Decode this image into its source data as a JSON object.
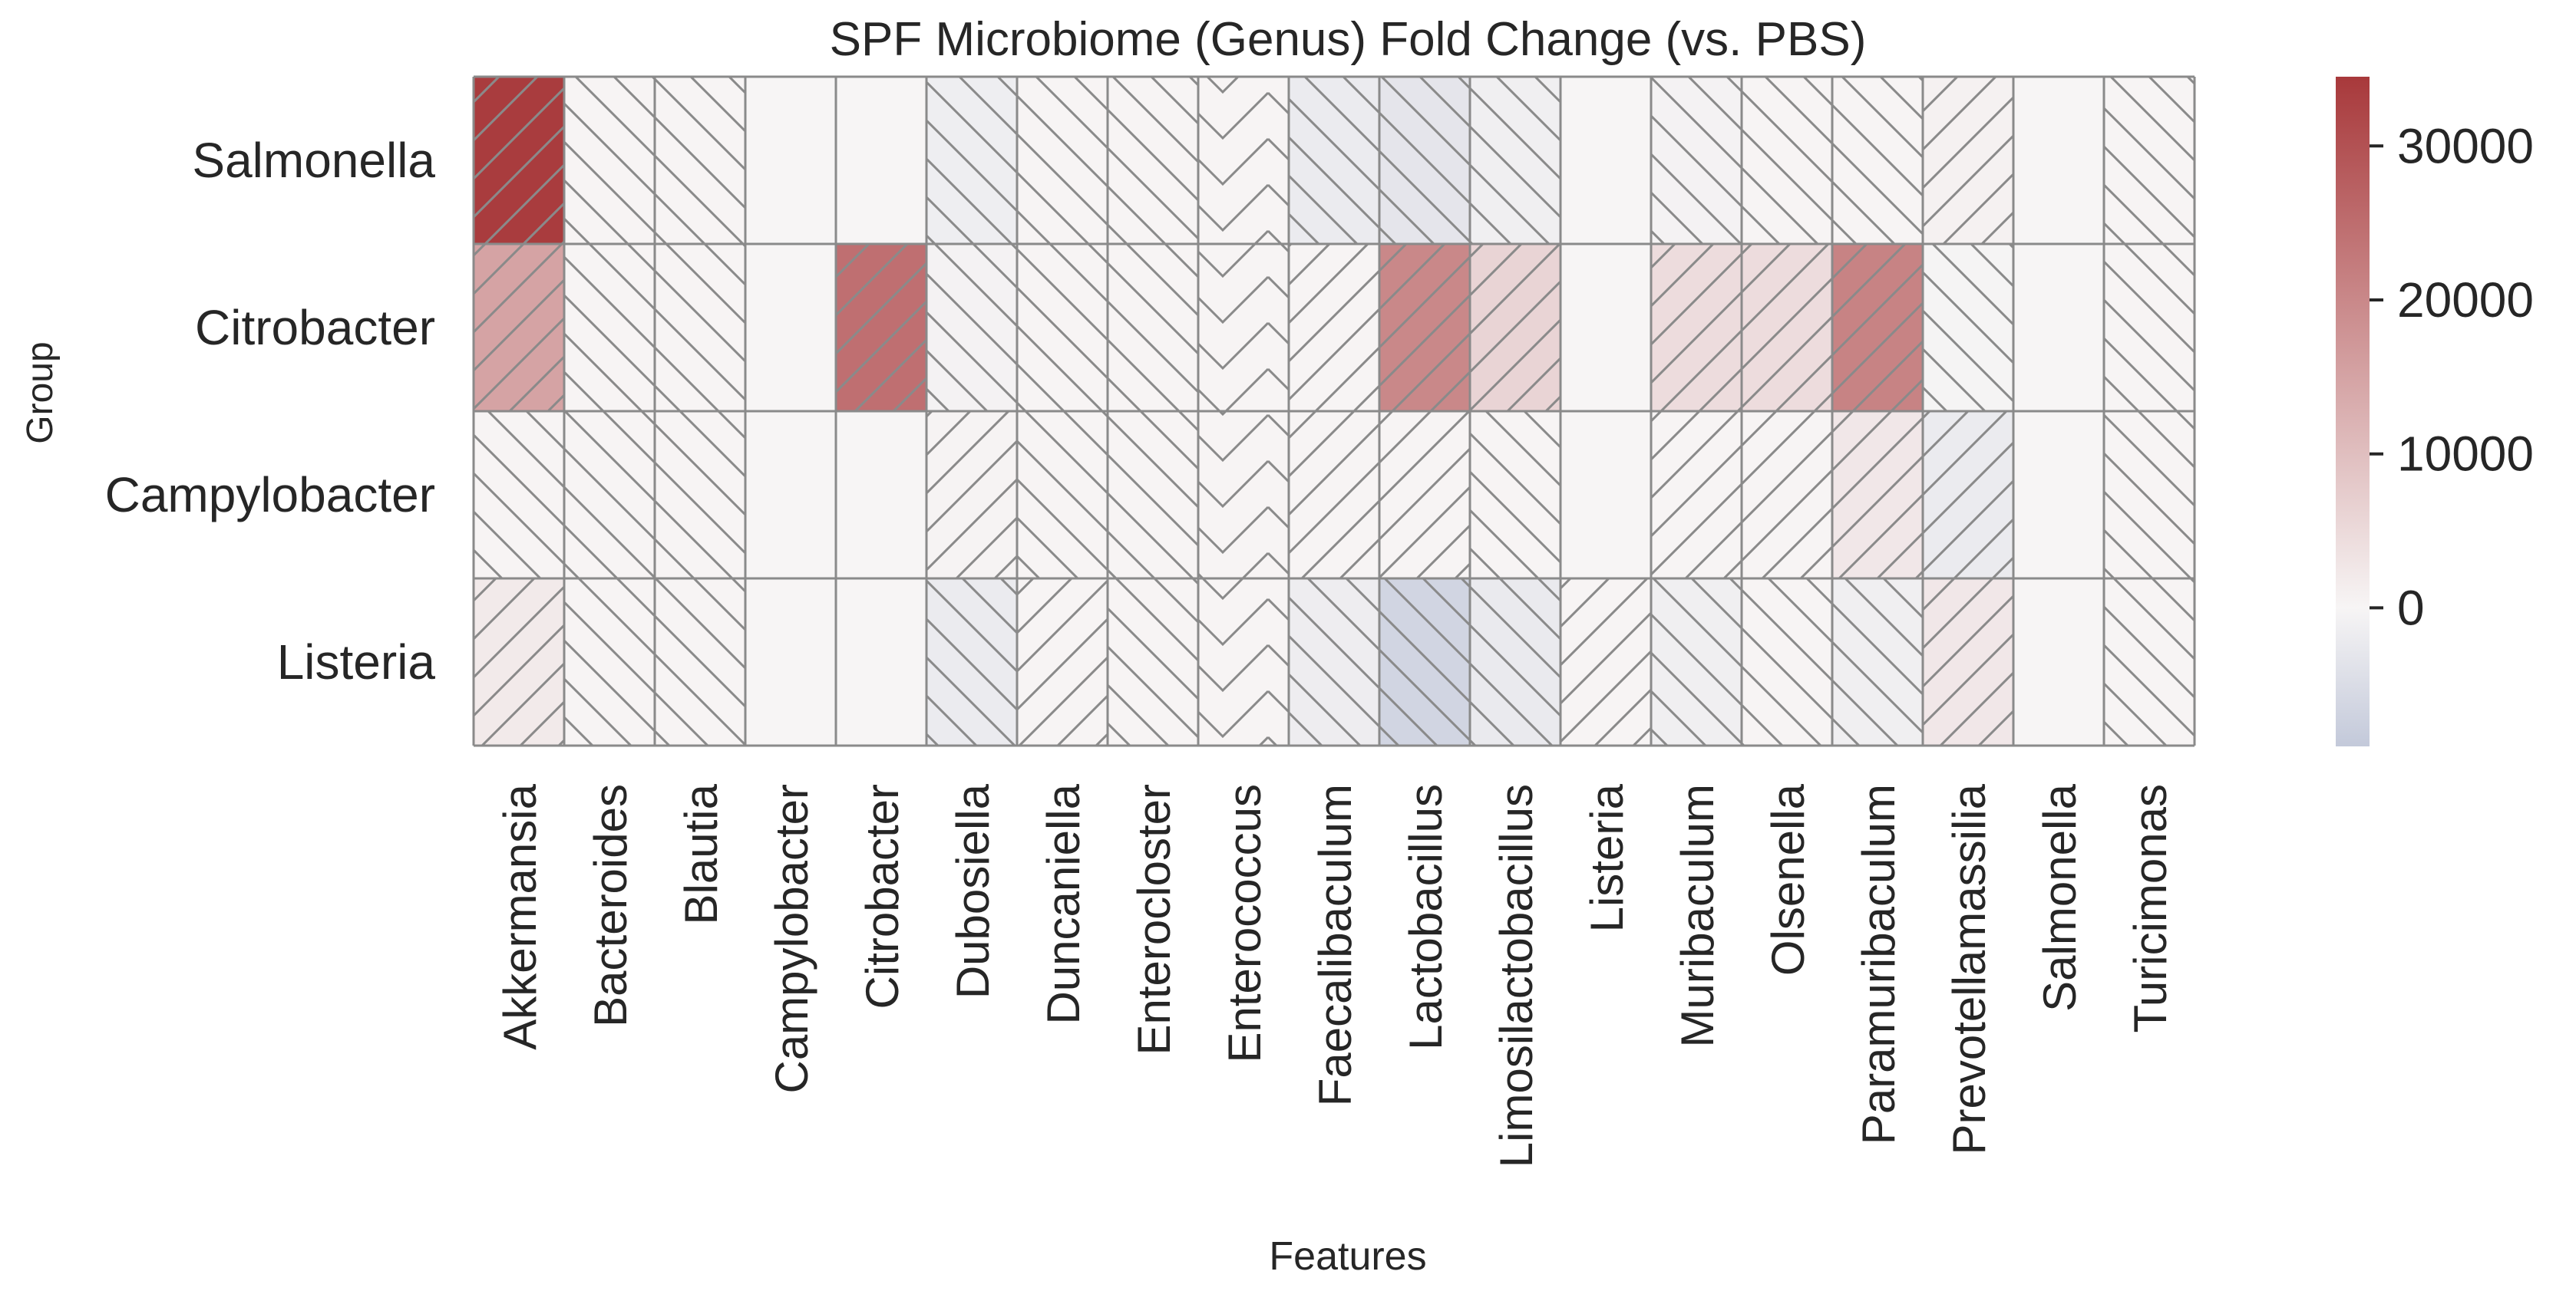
{
  "chart_data": {
    "type": "heatmap",
    "title": "SPF Microbiome (Genus) Fold Change (vs. PBS)",
    "xlabel": "Features",
    "ylabel": "Group",
    "rows": [
      "Salmonella",
      "Citrobacter",
      "Campylobacter",
      "Listeria"
    ],
    "columns": [
      "Akkermansia",
      "Bacteroides",
      "Blautia",
      "Campylobacter",
      "Citrobacter",
      "Dubosiella",
      "Duncaniella",
      "Enterocloster",
      "Enterococcus",
      "Faecalibaculum",
      "Lactobacillus",
      "Limosilactobacillus",
      "Listeria",
      "Muribaculum",
      "Olsenella",
      "Paramuribaculum",
      "Prevotellamassilia",
      "Salmonella",
      "Turicimonas"
    ],
    "values": [
      [
        34000,
        200,
        200,
        0,
        0,
        -1500,
        200,
        200,
        200,
        -2000,
        -3200,
        -1200,
        0,
        -600,
        200,
        200,
        800,
        0,
        200
      ],
      [
        15000,
        200,
        200,
        0,
        24500,
        -600,
        200,
        200,
        200,
        200,
        20000,
        6000,
        0,
        4500,
        4500,
        21000,
        -300,
        0,
        200
      ],
      [
        200,
        200,
        200,
        0,
        0,
        300,
        200,
        200,
        200,
        200,
        200,
        200,
        0,
        200,
        200,
        2500,
        -2000,
        0,
        200
      ],
      [
        2000,
        200,
        200,
        0,
        0,
        -2000,
        200,
        200,
        200,
        -1600,
        -6500,
        -2200,
        200,
        -1200,
        200,
        -1200,
        2500,
        0,
        200
      ]
    ],
    "hatch": [
      [
        "/",
        "\\",
        "\\",
        "",
        "",
        "\\",
        "\\",
        "\\",
        "v",
        "\\",
        "\\",
        "\\",
        "",
        "\\",
        "\\",
        "\\",
        "/",
        "",
        "\\"
      ],
      [
        "/",
        "\\",
        "\\",
        "",
        "/",
        "\\",
        "\\",
        "\\",
        "v",
        "/",
        "/",
        "/",
        "",
        "/",
        "/",
        "/",
        "\\",
        "",
        "\\"
      ],
      [
        "\\",
        "\\",
        "\\",
        "",
        "",
        "/",
        "\\",
        "\\",
        "v",
        "/",
        "/",
        "\\",
        "",
        "/",
        "/",
        "/",
        "/",
        "",
        "\\"
      ],
      [
        "/",
        "\\",
        "\\",
        "",
        "",
        "\\",
        "/",
        "\\",
        "v",
        "\\",
        "\\",
        "\\",
        "/",
        "\\",
        "\\",
        "\\",
        "/",
        "",
        "\\"
      ]
    ],
    "colorbar": {
      "vmin": -9000,
      "vmax": 34500,
      "center": 0,
      "ticks": [
        0,
        10000,
        20000,
        30000
      ],
      "tick_labels": [
        "0",
        "10000",
        "20000",
        "30000"
      ],
      "colors": {
        "low": "#c3c9da",
        "mid": "#f7f5f5",
        "high": "#a8393b"
      }
    },
    "style": {
      "grid_color": "#8a8a8a",
      "hatch_color": "#8a8a8a"
    }
  }
}
